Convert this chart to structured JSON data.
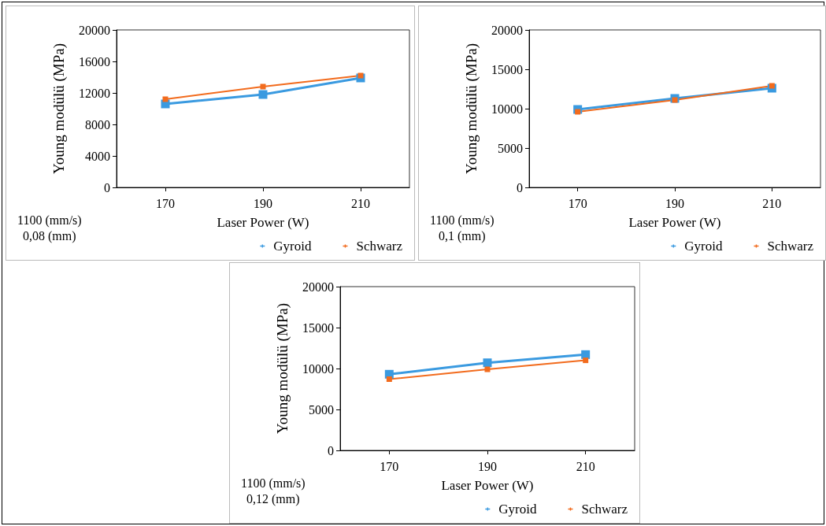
{
  "chart_data": [
    {
      "type": "line",
      "xlabel": "Laser Power (W)",
      "ylabel": "Young modülü (MPa)",
      "categories": [
        "170",
        "190",
        "210"
      ],
      "ylim": [
        0,
        20000
      ],
      "yticks": [
        0,
        4000,
        8000,
        12000,
        16000,
        20000
      ],
      "grid": false,
      "legend": "bottom",
      "marker": "square",
      "annotations": [
        "1100 (mm/s)",
        "0,08 (mm)"
      ],
      "series": [
        {
          "name": "Gyroid",
          "color": "#3a9ae0",
          "values": [
            10600,
            11800,
            13900
          ]
        },
        {
          "name": "Schwarz",
          "color": "#f26b1d",
          "values": [
            11200,
            12800,
            14200
          ]
        }
      ]
    },
    {
      "type": "line",
      "xlabel": "Laser Power (W)",
      "ylabel": "Young modülü (MPa)",
      "categories": [
        "170",
        "190",
        "210"
      ],
      "ylim": [
        0,
        20000
      ],
      "yticks": [
        0,
        5000,
        10000,
        15000,
        20000
      ],
      "grid": false,
      "legend": "bottom",
      "marker": "square",
      "annotations": [
        "1100 (mm/s)",
        "0,1 (mm)"
      ],
      "series": [
        {
          "name": "Gyroid",
          "color": "#3a9ae0",
          "values": [
            9900,
            11300,
            12600
          ]
        },
        {
          "name": "Schwarz",
          "color": "#f26b1d",
          "values": [
            9600,
            11100,
            12900
          ]
        }
      ]
    },
    {
      "type": "line",
      "xlabel": "Laser Power (W)",
      "ylabel": "Young modülü (MPa)",
      "categories": [
        "170",
        "190",
        "210"
      ],
      "ylim": [
        0,
        20000
      ],
      "yticks": [
        0,
        5000,
        10000,
        15000,
        20000
      ],
      "grid": false,
      "legend": "bottom",
      "marker": "square",
      "annotations": [
        "1100 (mm/s)",
        "0,12 (mm)"
      ],
      "series": [
        {
          "name": "Gyroid",
          "color": "#3a9ae0",
          "values": [
            9300,
            10700,
            11700
          ]
        },
        {
          "name": "Schwarz",
          "color": "#f26b1d",
          "values": [
            8700,
            9900,
            11000
          ]
        }
      ]
    }
  ]
}
